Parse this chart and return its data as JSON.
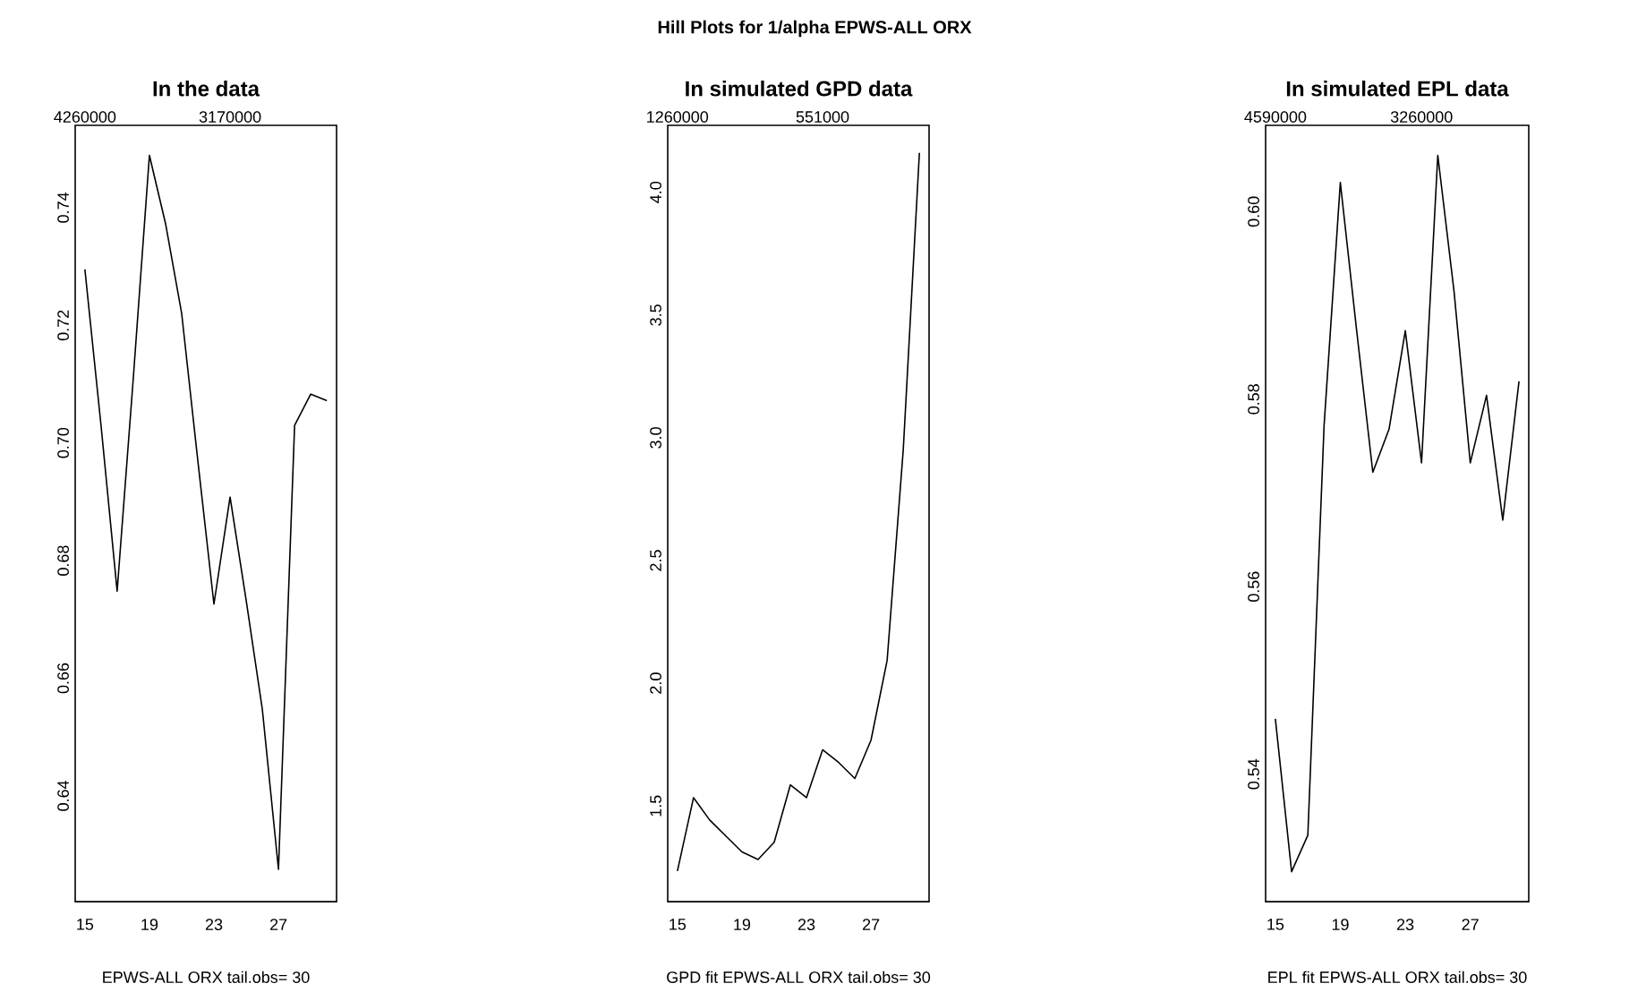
{
  "chart_data": [
    {
      "type": "line",
      "title": "In the data",
      "xlabel": "EPWS-ALL ORX tail.obs= 30",
      "annotations": [
        "Hill Plots for 1/alpha EPWS-ALL ORX"
      ],
      "color": "#000000",
      "x": [
        15,
        16,
        17,
        18,
        19,
        20,
        21,
        22,
        23,
        24,
        25,
        26,
        27,
        28,
        29,
        30
      ],
      "values": [
        0.7295,
        0.703,
        0.6748,
        0.711,
        0.7489,
        0.7373,
        0.722,
        0.697,
        0.6726,
        0.6908,
        0.6732,
        0.6547,
        0.6275,
        0.703,
        0.7083,
        0.7072
      ],
      "xlim": [
        14.4,
        30.6
      ],
      "ylim": [
        0.622,
        0.754
      ],
      "xticks": [
        15,
        19,
        23,
        27
      ],
      "yticks": [
        0.64,
        0.66,
        0.68,
        {
          "value": 0.7,
          "label": "0.70"
        },
        0.72,
        0.74
      ],
      "x2lim": [
        4333000,
        2371000
      ],
      "x2ticks": [
        4260000,
        3170000
      ]
    },
    {
      "type": "line",
      "title": "In simulated GPD data",
      "xlabel": "GPD fit  EPWS-ALL ORX tail.obs= 30",
      "color": "#000000",
      "x": [
        15,
        16,
        17,
        18,
        19,
        20,
        21,
        22,
        23,
        24,
        25,
        26,
        27,
        28,
        29,
        30
      ],
      "values": [
        1.235,
        1.534,
        1.443,
        1.378,
        1.313,
        1.282,
        1.352,
        1.586,
        1.534,
        1.729,
        1.677,
        1.612,
        1.768,
        2.093,
        2.952,
        4.161
      ],
      "xlim": [
        14.4,
        30.6
      ],
      "ylim": [
        1.11,
        4.273
      ],
      "xticks": [
        15,
        19,
        23,
        27
      ],
      "yticks": [
        1.5,
        {
          "value": 2,
          "label": "2.0"
        },
        2.5,
        {
          "value": 3,
          "label": "3.0"
        },
        3.5,
        {
          "value": 4,
          "label": "4.0"
        }
      ],
      "x2lim": [
        1307000,
        31000
      ],
      "x2ticks": [
        1260000,
        551000
      ]
    },
    {
      "type": "line",
      "title": "In simulated EPL data",
      "xlabel": "EPL fit  EPWS-ALL ORX tail.obs= 30",
      "color": "#000000",
      "x": [
        15,
        16,
        17,
        18,
        19,
        20,
        21,
        22,
        23,
        24,
        25,
        26,
        27,
        28,
        29,
        30
      ],
      "values": [
        0.5459,
        0.5296,
        0.5335,
        0.5772,
        0.6031,
        0.5874,
        0.5722,
        0.5768,
        0.5873,
        0.5732,
        0.606,
        0.5915,
        0.5732,
        0.5804,
        0.5671,
        0.5819
      ],
      "xlim": [
        14.4,
        30.6
      ],
      "ylim": [
        0.5264,
        0.6092
      ],
      "xticks": [
        15,
        19,
        23,
        27
      ],
      "yticks": [
        0.54,
        0.56,
        0.58,
        {
          "value": 0.6,
          "label": "0.60"
        }
      ],
      "x2lim": [
        4679000,
        2285000
      ],
      "x2ticks": [
        4590000,
        3260000
      ]
    }
  ]
}
